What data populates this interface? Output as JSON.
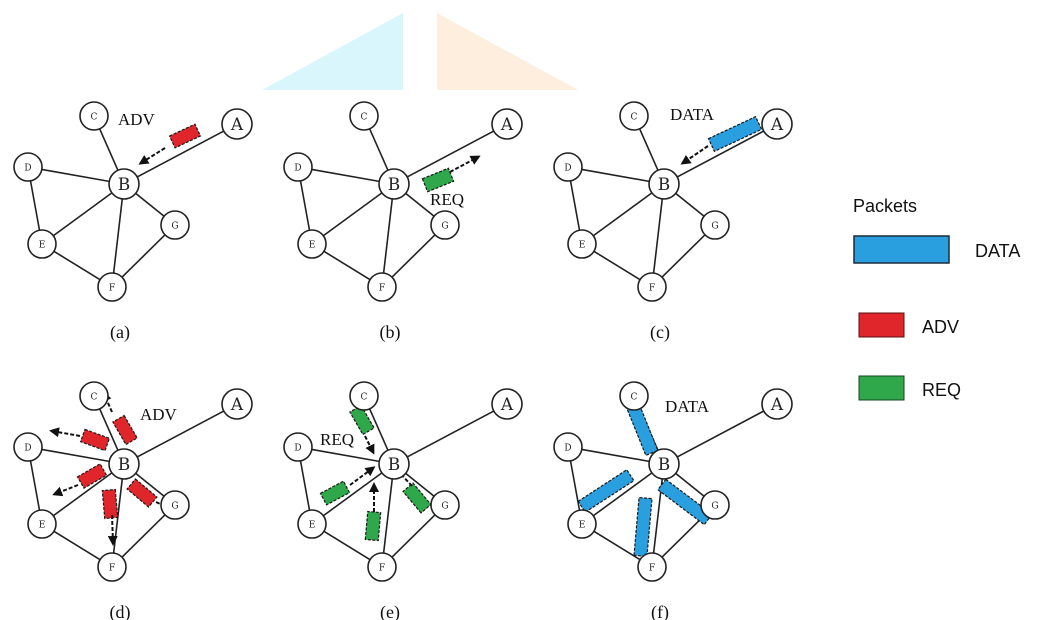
{
  "colors": {
    "data_packet": "#2a9fe0",
    "adv_packet": "#e0262b",
    "req_packet": "#2ea84a",
    "watermark_cyan": "#d8f6fb",
    "watermark_orange": "#fdeedd",
    "edge": "#222222",
    "node_fill": "#ffffff"
  },
  "legend": {
    "title": "Packets",
    "items": [
      {
        "key": "data",
        "label": "DATA",
        "color": "#2a9fe0"
      },
      {
        "key": "adv",
        "label": "ADV",
        "color": "#e0262b"
      },
      {
        "key": "req",
        "label": "REQ",
        "color": "#2ea84a"
      }
    ]
  },
  "panels": [
    {
      "id": "a",
      "caption": "(a)",
      "message": "ADV",
      "nodes": {
        "A": "A",
        "B": "B",
        "C": "C",
        "D": "D",
        "E": "E",
        "F": "F",
        "G": "G"
      }
    },
    {
      "id": "b",
      "caption": "(b)",
      "message": "REQ",
      "nodes": {
        "A": "A",
        "B": "B",
        "C": "C",
        "D": "D",
        "E": "E",
        "F": "F",
        "G": "G"
      }
    },
    {
      "id": "c",
      "caption": "(c)",
      "message": "DATA",
      "nodes": {
        "A": "A",
        "B": "B",
        "C": "C",
        "D": "D",
        "E": "E",
        "F": "F",
        "G": "G"
      }
    },
    {
      "id": "d",
      "caption": "(d)",
      "message": "ADV",
      "nodes": {
        "A": "A",
        "B": "B",
        "C": "C",
        "D": "D",
        "E": "E",
        "F": "F",
        "G": "G"
      }
    },
    {
      "id": "e",
      "caption": "(e)",
      "message": "REQ",
      "nodes": {
        "A": "A",
        "B": "B",
        "C": "C",
        "D": "D",
        "E": "E",
        "F": "F",
        "G": "G"
      }
    },
    {
      "id": "f",
      "caption": "(f)",
      "message": "DATA",
      "nodes": {
        "A": "A",
        "B": "B",
        "C": "C",
        "D": "D",
        "E": "E",
        "F": "F",
        "G": "G"
      }
    }
  ]
}
